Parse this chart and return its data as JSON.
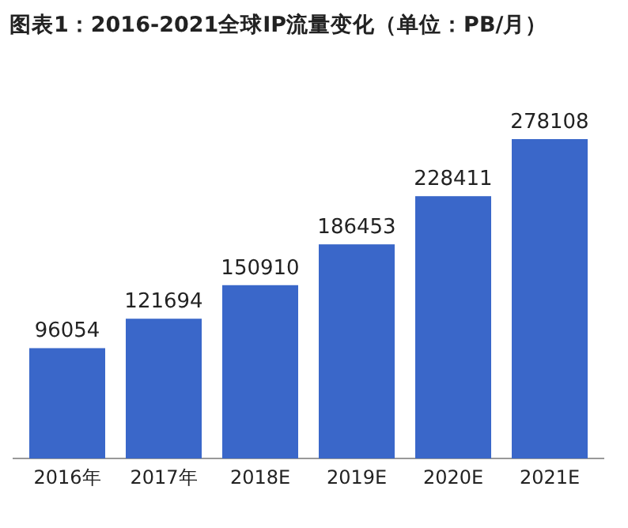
{
  "chart_data": {
    "type": "bar",
    "title": "图表1：2016-2021全球IP流量变化（单位：PB/月）",
    "categories": [
      "2016年",
      "2017年",
      "2018E",
      "2019E",
      "2020E",
      "2021E"
    ],
    "values": [
      96054,
      121694,
      150910,
      186453,
      228411,
      278108
    ],
    "color": "#3a67c9",
    "data_labels": true
  }
}
